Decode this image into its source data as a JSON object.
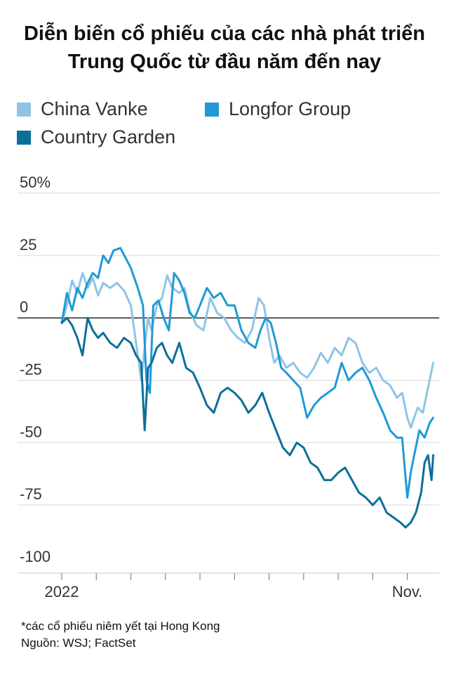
{
  "title_line1": "Diễn biến cổ phiếu của các nhà phát triển",
  "title_line2": "Trung Quốc từ đầu năm đến nay",
  "footnote": "*các cổ phiếu niêm yết tại Hong Kong",
  "source": "Nguồn: WSJ; FactSet",
  "colors": {
    "vanke": "#8fc4e6",
    "longfor": "#1f9ad4",
    "country_garden": "#0b6f9a",
    "grid": "#dddddd",
    "zero": "#333333",
    "axis_text": "#333333"
  },
  "chart_data": {
    "type": "line",
    "ylim": [
      -100,
      50
    ],
    "xlim": [
      0,
      10.8
    ],
    "y_ticks": [
      50,
      25,
      0,
      -25,
      -50,
      -75,
      -100
    ],
    "y_tick_labels": [
      "50%",
      "25",
      "0",
      "-25",
      "-50",
      "-75",
      "-100"
    ],
    "x_tick_labels": [
      {
        "pos": 0,
        "label": "2022"
      },
      {
        "pos": 10,
        "label": "Nov."
      }
    ],
    "x_minor_ticks": [
      0,
      1,
      2,
      3,
      4,
      5,
      6,
      7,
      8,
      9,
      10
    ],
    "legend_position": "top-left",
    "series": [
      {
        "name": "China Vanke",
        "x": [
          0,
          0.15,
          0.3,
          0.45,
          0.6,
          0.75,
          0.9,
          1.05,
          1.2,
          1.4,
          1.6,
          1.8,
          2.0,
          2.15,
          2.3,
          2.4,
          2.5,
          2.6,
          2.75,
          2.9,
          3.05,
          3.2,
          3.4,
          3.55,
          3.7,
          3.9,
          4.1,
          4.3,
          4.5,
          4.7,
          4.9,
          5.1,
          5.3,
          5.5,
          5.7,
          5.85,
          6.0,
          6.15,
          6.3,
          6.5,
          6.7,
          6.9,
          7.1,
          7.3,
          7.5,
          7.7,
          7.9,
          8.1,
          8.3,
          8.5,
          8.7,
          8.9,
          9.1,
          9.3,
          9.5,
          9.7,
          9.85,
          10.0,
          10.1,
          10.2,
          10.3,
          10.45,
          10.6,
          10.75
        ],
        "values": [
          -2,
          5,
          15,
          10,
          18,
          12,
          16,
          9,
          14,
          12,
          14,
          11,
          5,
          -10,
          -25,
          -12,
          0,
          -5,
          5,
          8,
          17,
          12,
          10,
          12,
          3,
          -3,
          -5,
          8,
          2,
          0,
          -5,
          -8,
          -10,
          -5,
          8,
          5,
          -8,
          -18,
          -15,
          -20,
          -18,
          -22,
          -24,
          -20,
          -14,
          -18,
          -12,
          -15,
          -8,
          -10,
          -18,
          -22,
          -20,
          -25,
          -27,
          -32,
          -30,
          -40,
          -44,
          -40,
          -36,
          -38,
          -28,
          -18
        ]
      },
      {
        "name": "Longfor Group",
        "x": [
          0,
          0.15,
          0.3,
          0.45,
          0.6,
          0.75,
          0.9,
          1.05,
          1.2,
          1.35,
          1.5,
          1.7,
          1.85,
          2.0,
          2.2,
          2.35,
          2.45,
          2.55,
          2.65,
          2.8,
          2.95,
          3.1,
          3.25,
          3.4,
          3.55,
          3.7,
          3.85,
          4.0,
          4.2,
          4.4,
          4.6,
          4.8,
          5.0,
          5.2,
          5.4,
          5.6,
          5.75,
          5.9,
          6.05,
          6.2,
          6.35,
          6.5,
          6.7,
          6.9,
          7.1,
          7.3,
          7.5,
          7.7,
          7.9,
          8.1,
          8.3,
          8.5,
          8.7,
          8.9,
          9.1,
          9.3,
          9.5,
          9.7,
          9.85,
          10.0,
          10.1,
          10.2,
          10.35,
          10.5,
          10.65,
          10.75
        ],
        "values": [
          -2,
          10,
          3,
          12,
          8,
          14,
          18,
          16,
          25,
          22,
          27,
          28,
          24,
          20,
          12,
          5,
          -25,
          -30,
          5,
          7,
          0,
          -5,
          18,
          15,
          10,
          2,
          0,
          5,
          12,
          8,
          10,
          5,
          5,
          -5,
          -10,
          -12,
          -5,
          0,
          -2,
          -10,
          -20,
          -22,
          -25,
          -28,
          -40,
          -35,
          -32,
          -30,
          -28,
          -18,
          -25,
          -22,
          -20,
          -25,
          -32,
          -38,
          -45,
          -48,
          -48,
          -72,
          -62,
          -55,
          -45,
          -48,
          -42,
          -40
        ]
      },
      {
        "name": "Country Garden",
        "x": [
          0,
          0.15,
          0.3,
          0.45,
          0.6,
          0.75,
          0.9,
          1.05,
          1.2,
          1.4,
          1.6,
          1.8,
          2.0,
          2.15,
          2.3,
          2.4,
          2.5,
          2.6,
          2.75,
          2.9,
          3.05,
          3.2,
          3.4,
          3.6,
          3.8,
          4.0,
          4.2,
          4.4,
          4.6,
          4.8,
          5.0,
          5.2,
          5.4,
          5.6,
          5.8,
          6.0,
          6.2,
          6.4,
          6.6,
          6.8,
          7.0,
          7.2,
          7.4,
          7.6,
          7.8,
          8.0,
          8.2,
          8.4,
          8.6,
          8.8,
          9.0,
          9.2,
          9.4,
          9.6,
          9.8,
          9.95,
          10.1,
          10.25,
          10.4,
          10.5,
          10.6,
          10.7,
          10.75
        ],
        "values": [
          -2,
          0,
          -3,
          -8,
          -15,
          0,
          -5,
          -8,
          -6,
          -10,
          -12,
          -8,
          -10,
          -15,
          -18,
          -45,
          -20,
          -18,
          -12,
          -10,
          -15,
          -18,
          -10,
          -20,
          -22,
          -28,
          -35,
          -38,
          -30,
          -28,
          -30,
          -33,
          -38,
          -35,
          -30,
          -38,
          -45,
          -52,
          -55,
          -50,
          -52,
          -58,
          -60,
          -65,
          -65,
          -62,
          -60,
          -65,
          -70,
          -72,
          -75,
          -72,
          -78,
          -80,
          -82,
          -84,
          -82,
          -78,
          -70,
          -58,
          -55,
          -65,
          -55
        ]
      }
    ]
  }
}
